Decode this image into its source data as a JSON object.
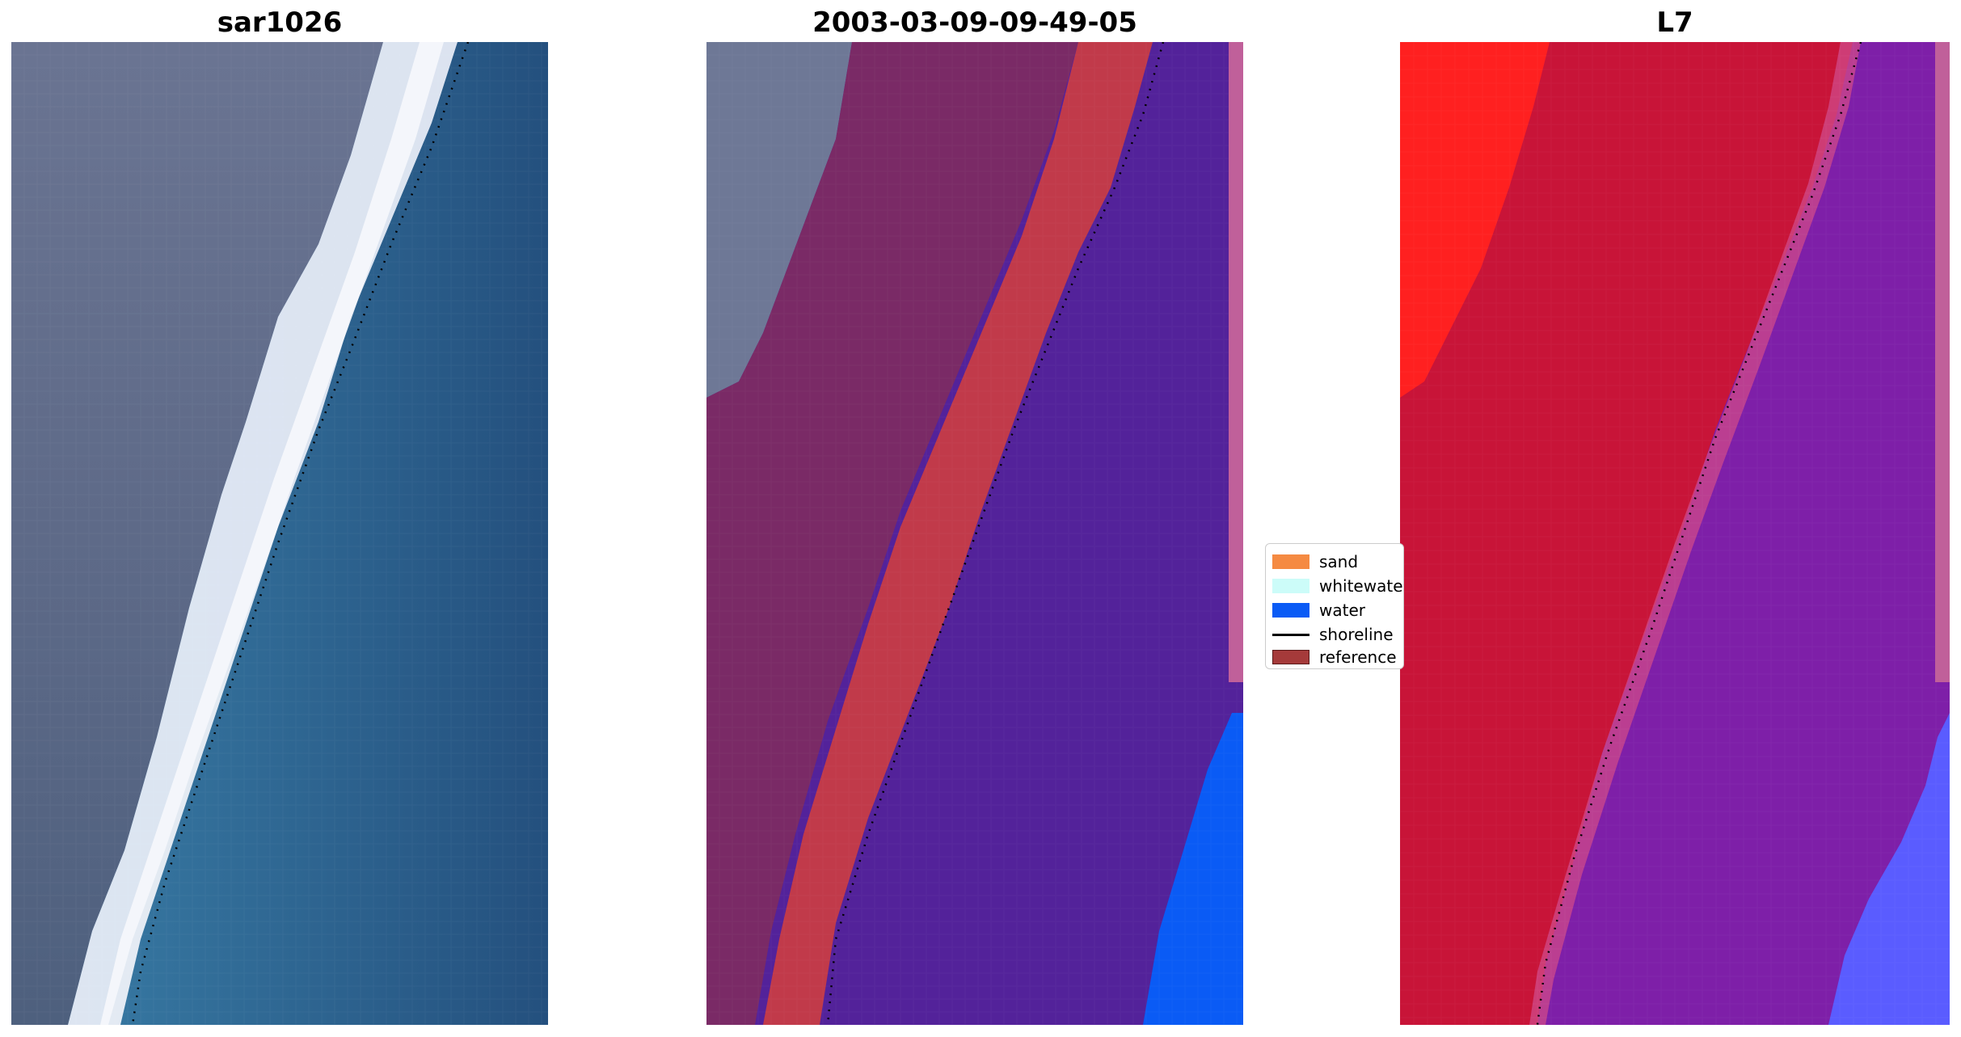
{
  "panels": [
    {
      "title": "sar1026"
    },
    {
      "title": "2003-03-09-09-49-05"
    },
    {
      "title": "L7"
    }
  ],
  "legend": {
    "items": [
      {
        "label": "sand",
        "color": "#f58a42",
        "kind": "patch"
      },
      {
        "label": "whitewater",
        "color": "#ccfcf9",
        "kind": "patch"
      },
      {
        "label": "water",
        "color": "#0a5bf5",
        "kind": "patch"
      },
      {
        "label": "shoreline",
        "color": "#000000",
        "kind": "line"
      },
      {
        "label": "reference",
        "color": "#a53a3a",
        "kind": "patch"
      }
    ]
  },
  "colors": {
    "land_rgb": "#6e7896",
    "surf_white": "#eef0f8",
    "sea_blue": "#2a6fa0",
    "overlay_magenta": "#7a2a66",
    "overlay_red": "#c13a4a",
    "overlay_purple": "#53229a",
    "water_blue": "#0a5bf5",
    "l7_red": "#c81438",
    "l7_bright_red": "#ff2020",
    "l7_purple": "#7e1fa8",
    "l7_blue": "#5a5cff"
  }
}
